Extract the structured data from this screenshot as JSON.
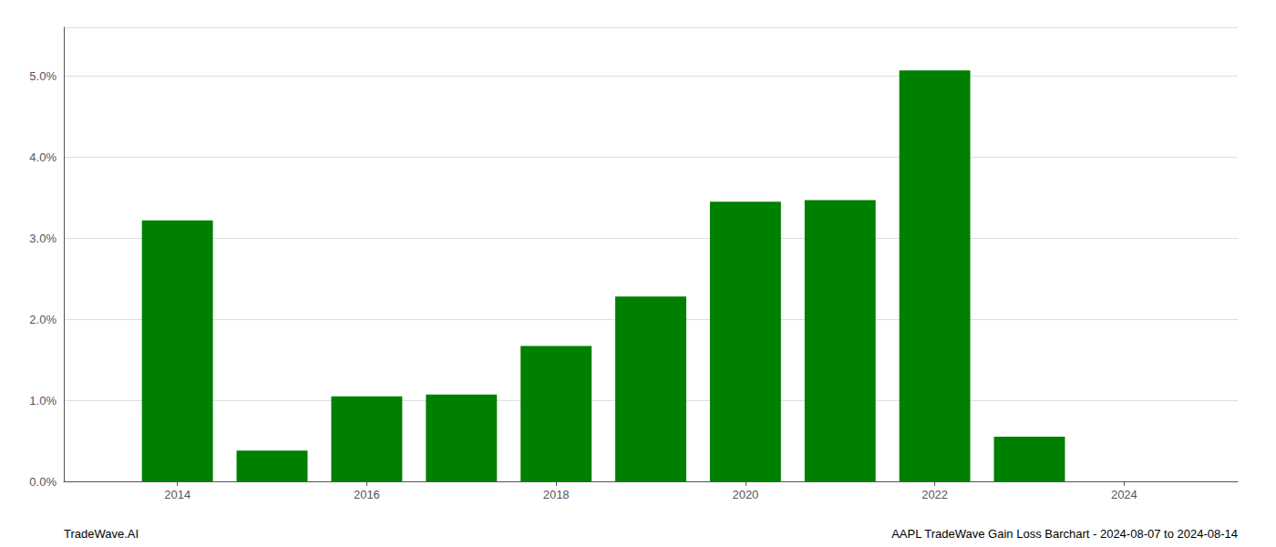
{
  "chart_data": {
    "type": "bar",
    "x": [
      2014,
      2015,
      2016,
      2017,
      2018,
      2019,
      2020,
      2021,
      2022,
      2023,
      2024
    ],
    "values": [
      3.22,
      0.38,
      1.05,
      1.07,
      1.67,
      2.28,
      3.45,
      3.47,
      5.07,
      0.55,
      0.0
    ],
    "color": "#008000",
    "xlim": [
      2012.8,
      2025.2
    ],
    "xticks": [
      2014,
      2016,
      2018,
      2020,
      2022,
      2024
    ],
    "ylim": [
      0.0,
      5.6
    ],
    "yticks": [
      {
        "value": 0.0,
        "label": "0.0%"
      },
      {
        "value": 1.0,
        "label": "1.0%"
      },
      {
        "value": 2.0,
        "label": "2.0%"
      },
      {
        "value": 3.0,
        "label": "3.0%"
      },
      {
        "value": 4.0,
        "label": "4.0%"
      },
      {
        "value": 5.0,
        "label": "5.0%"
      }
    ],
    "grid": true,
    "annotations": [
      "TradeWave.AI",
      "AAPL TradeWave Gain Loss Barchart - 2024-08-07 to 2024-08-14"
    ]
  }
}
